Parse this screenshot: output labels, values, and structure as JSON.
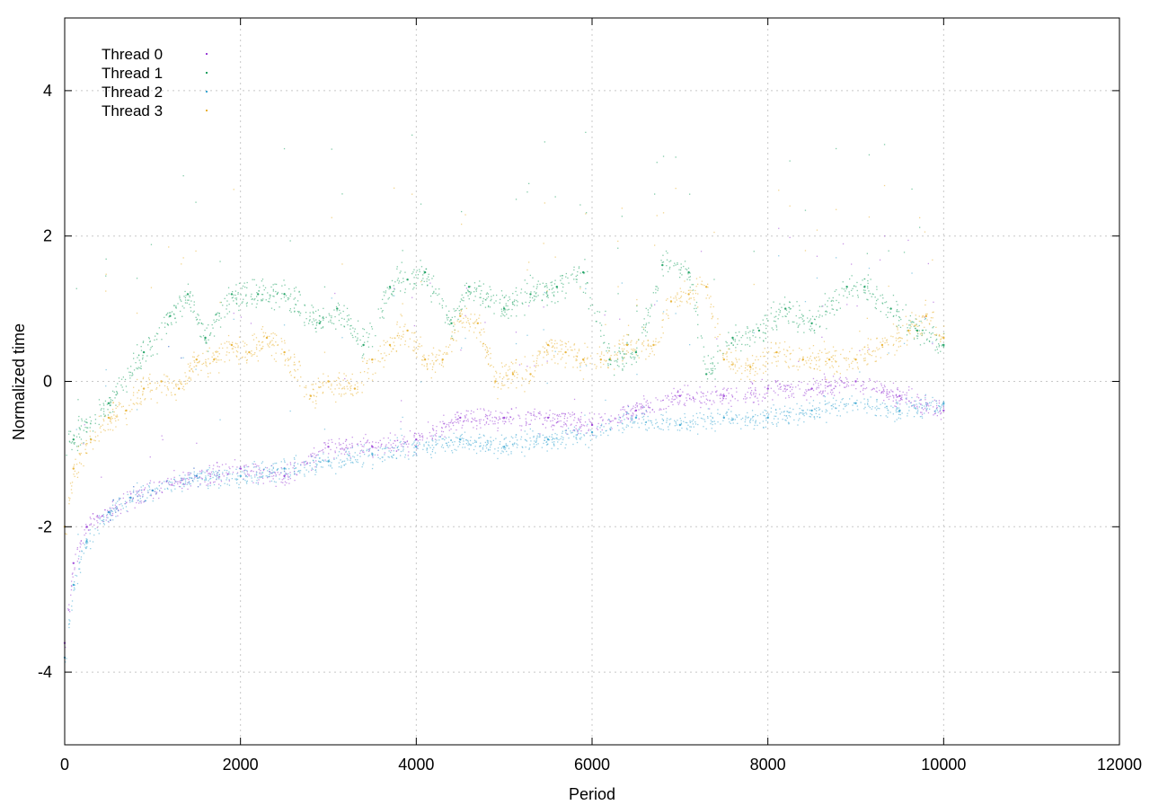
{
  "chart_data": {
    "type": "scatter",
    "title": "",
    "xlabel": "Period",
    "ylabel": "Normalized time",
    "xlim": [
      0,
      12000
    ],
    "ylim": [
      -5,
      5
    ],
    "xticks": [
      0,
      2000,
      4000,
      6000,
      8000,
      10000,
      12000
    ],
    "yticks": [
      -4,
      -2,
      0,
      2,
      4
    ],
    "xtick_labels": [
      "0",
      "2000",
      "4000",
      "6000",
      "8000",
      "10000",
      "12000"
    ],
    "ytick_labels": [
      "-4",
      "-2",
      "0",
      "2",
      "4"
    ],
    "grid": true,
    "legend_position": "top-left",
    "series": [
      {
        "name": "Thread 0",
        "color": "#9a3fd6",
        "x": [
          0,
          100,
          250,
          500,
          750,
          1000,
          1500,
          2000,
          2500,
          3000,
          3500,
          4000,
          4500,
          5000,
          5500,
          6000,
          6500,
          7000,
          7500,
          8000,
          8500,
          9000,
          9500,
          10000
        ],
        "y": [
          -3.6,
          -2.5,
          -2.0,
          -1.8,
          -1.6,
          -1.5,
          -1.3,
          -1.2,
          -1.3,
          -0.9,
          -0.9,
          -0.8,
          -0.5,
          -0.5,
          -0.5,
          -0.6,
          -0.4,
          -0.2,
          -0.2,
          -0.1,
          -0.1,
          0.0,
          -0.2,
          -0.4
        ]
      },
      {
        "name": "Thread 1",
        "color": "#1aa060",
        "x": [
          100,
          500,
          900,
          1200,
          1400,
          1600,
          1900,
          2200,
          2500,
          2900,
          3100,
          3400,
          3700,
          3900,
          4100,
          4400,
          4600,
          5000,
          5300,
          5600,
          5900,
          6200,
          6500,
          6800,
          7100,
          7300,
          7600,
          7900,
          8200,
          8500,
          8900,
          9100,
          9400,
          9700,
          10000
        ],
        "y": [
          -0.8,
          -0.3,
          0.4,
          0.9,
          1.2,
          0.6,
          1.2,
          1.2,
          1.2,
          0.8,
          1.0,
          0.5,
          1.3,
          1.4,
          1.5,
          0.8,
          1.3,
          1.0,
          1.2,
          1.3,
          1.5,
          0.3,
          0.4,
          1.6,
          1.5,
          0.1,
          0.6,
          0.7,
          1.0,
          0.8,
          1.3,
          1.3,
          1.0,
          0.7,
          0.5
        ]
      },
      {
        "name": "Thread 2",
        "color": "#3aa6d2",
        "x": [
          0,
          100,
          250,
          500,
          750,
          1000,
          1500,
          2000,
          2500,
          3000,
          3500,
          4000,
          4500,
          5000,
          5500,
          6000,
          6500,
          7000,
          7500,
          8000,
          8500,
          9000,
          9500,
          10000
        ],
        "y": [
          -3.8,
          -2.8,
          -2.2,
          -1.8,
          -1.6,
          -1.5,
          -1.3,
          -1.3,
          -1.2,
          -1.1,
          -1.0,
          -0.9,
          -0.8,
          -0.9,
          -0.8,
          -0.7,
          -0.5,
          -0.6,
          -0.5,
          -0.5,
          -0.4,
          -0.3,
          -0.4,
          -0.3
        ]
      },
      {
        "name": "Thread 3",
        "color": "#e8b030",
        "x": [
          0,
          100,
          300,
          500,
          700,
          900,
          1100,
          1300,
          1500,
          1700,
          1900,
          2100,
          2300,
          2500,
          2800,
          3000,
          3300,
          3500,
          3700,
          3900,
          4100,
          4300,
          4500,
          4700,
          4900,
          5100,
          5300,
          5500,
          5700,
          5900,
          6100,
          6400,
          6700,
          6900,
          7100,
          7300,
          7500,
          7800,
          8100,
          8400,
          8700,
          9000,
          9300,
          9600,
          9800,
          10000
        ],
        "y": [
          -2.0,
          -1.2,
          -0.8,
          -0.5,
          -0.4,
          -0.1,
          0.0,
          -0.1,
          0.3,
          0.3,
          0.5,
          0.4,
          0.6,
          0.4,
          -0.2,
          0.0,
          -0.1,
          0.3,
          0.5,
          0.7,
          0.3,
          0.3,
          0.9,
          0.8,
          0.0,
          0.1,
          0.1,
          0.5,
          0.4,
          0.3,
          0.3,
          0.5,
          0.5,
          1.1,
          1.2,
          1.3,
          0.3,
          0.2,
          0.4,
          0.3,
          0.3,
          0.3,
          0.5,
          0.7,
          0.9,
          0.6
        ]
      }
    ]
  }
}
